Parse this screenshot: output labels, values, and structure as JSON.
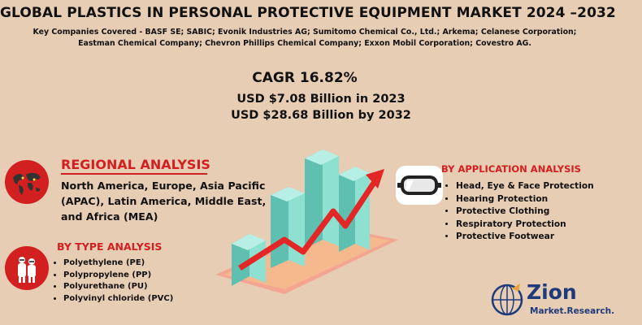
{
  "title": "GLOBAL PLASTICS IN PERSONAL PROTECTIVE EQUIPMENT MARKET 2024 –2032",
  "companies": {
    "line1": "Key Companies Covered -  BASF SE; SABIC; Evonik Industries AG; Sumitomo Chemical Co., Ltd.; Arkema; Celanese Corporation;",
    "line2": "Eastman Chemical Company; Chevron Phillips Chemical Company; Exxon Mobil Corporation; Covestro AG."
  },
  "stats": {
    "cagr": "CAGR 16.82%",
    "usd_2023": "USD $7.08 Billion in 2023",
    "usd_2032": "USD $28.68 Billion  by 2032"
  },
  "regional": {
    "heading": "REGIONAL ANALYSIS",
    "text": "North America, Europe, Asia Pacific (APAC), Latin America, Middle East, and Africa (MEA)"
  },
  "type": {
    "heading": "BY TYPE ANALYSIS",
    "items": [
      "Polyethylene (PE)",
      "Polypropylene (PP)",
      "Polyurethane (PU)",
      "Polyvinyl chloride (PVC)"
    ]
  },
  "application": {
    "heading": "BY APPLICATION ANALYSIS",
    "items": [
      "Head, Eye & Face Protection",
      "Hearing Protection",
      "Protective Clothing",
      "Respiratory Protection",
      "Protective Footwear"
    ]
  },
  "logo": {
    "main": "Zion",
    "sub": "Market.Research."
  },
  "colors": {
    "background": "#e8cdb5",
    "accent_red": "#d21f1f",
    "bar_teal": "#7fd6c6",
    "arrow_red": "#e32626",
    "logo_blue": "#1f3a7a"
  },
  "icons": [
    "world-map-icon",
    "ppe-workers-icon",
    "goggles-icon",
    "growth-bar-chart-icon"
  ]
}
